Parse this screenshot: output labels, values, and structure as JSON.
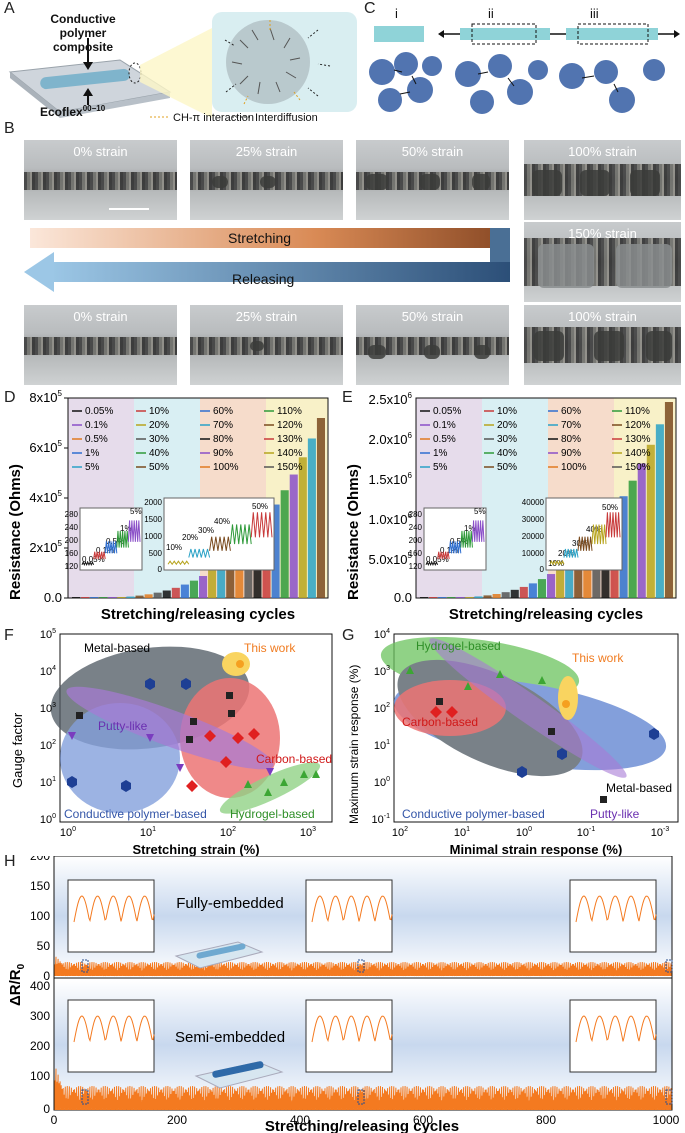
{
  "panels": {
    "A": "A",
    "B": "B",
    "C": "C",
    "D": "D",
    "E": "E",
    "F": "F",
    "G": "G",
    "H": "H"
  },
  "panelA": {
    "label_composite_1": "Conductive",
    "label_composite_2": "polymer composite",
    "label_substrate": "Ecoflex",
    "label_substrate_sup": "00−10",
    "legend_ch": "CH-π interaction",
    "legend_inter": "Interdiffusion"
  },
  "panelC": {
    "i": "i",
    "ii": "ii",
    "iii": "iii"
  },
  "panelB": {
    "top_labels": [
      "0% strain",
      "25% strain",
      "50% strain"
    ],
    "right_labels": [
      "100% strain",
      "150% strain",
      "100% strain"
    ],
    "bottom_labels": [
      "0% strain",
      "25% strain",
      "50% strain"
    ],
    "stretching": "Stretching",
    "releasing": "Releasing"
  },
  "panelD": {
    "ylabel": "Resistance (Ohms)",
    "xlabel": "Stretching/releasing cycles",
    "yticks": [
      "8x10",
      "6x10",
      "4x10",
      "2x10",
      "0.0"
    ],
    "ytick_exp": "5",
    "legend": [
      "0.05%",
      "10%",
      "60%",
      "110%",
      "0.1%",
      "20%",
      "70%",
      "120%",
      "0.5%",
      "30%",
      "80%",
      "130%",
      "1%",
      "40%",
      "90%",
      "140%",
      "5%",
      "50%",
      "100%",
      "150%"
    ],
    "inset1_yticks": [
      "280",
      "240",
      "200",
      "160",
      "120"
    ],
    "inset1_labels": [
      "0.05%",
      "0.1%",
      "0.5%",
      "1%",
      "5%"
    ],
    "inset2_yticks": [
      "2000",
      "1500",
      "1000",
      "500",
      "0"
    ],
    "inset2_labels": [
      "10%",
      "20%",
      "30%",
      "40%",
      "50%"
    ]
  },
  "panelE": {
    "ylabel": "Resistance (Ohms)",
    "xlabel": "Stretching/releasing cycles",
    "yticks": [
      "2.5x10",
      "2.0x10",
      "1.5x10",
      "1.0x10",
      "5.0x10",
      "0.0"
    ],
    "ytick_exps": [
      "6",
      "6",
      "6",
      "6",
      "5"
    ],
    "inset1_yticks": [
      "280",
      "240",
      "200",
      "160",
      "120"
    ],
    "inset1_labels": [
      "0.05%",
      "0.1%",
      "0.5%",
      "1%",
      "5%"
    ],
    "inset2_yticks": [
      "40000",
      "30000",
      "20000",
      "10000",
      "0"
    ],
    "inset2_labels": [
      "10%",
      "20%",
      "30%",
      "40%",
      "50%"
    ]
  },
  "panelF": {
    "ylabel": "Gauge factor",
    "xlabel": "Stretching strain (%)",
    "yticks": [
      "10",
      "10",
      "10",
      "10",
      "10",
      "10"
    ],
    "ytick_exps": [
      "5",
      "4",
      "3",
      "2",
      "1",
      "0"
    ],
    "xticks": [
      "10",
      "10",
      "10",
      "10"
    ],
    "xtick_exps": [
      "0",
      "1",
      "2",
      "3"
    ],
    "labels": {
      "metal": "Metal-based",
      "this": "This work",
      "putty": "Putty-like",
      "carbon": "Carbon-based",
      "conductive": "Conductive polymer-based",
      "hydrogel": "Hydrogel-based"
    }
  },
  "panelG": {
    "ylabel": "Maximum strain response (%)",
    "xlabel": "Minimal strain response (%)",
    "yticks": [
      "10",
      "10",
      "10",
      "10",
      "10",
      "10"
    ],
    "ytick_exps": [
      "4",
      "3",
      "2",
      "1",
      "0",
      "-1"
    ],
    "xticks": [
      "10",
      "10",
      "10",
      "10",
      "10"
    ],
    "xtick_exps": [
      "2",
      "1",
      "0",
      "-1",
      "-3"
    ],
    "labels": {
      "hydrogel": "Hydrogel-based",
      "this": "This work",
      "carbon": "Carbon-based",
      "metal": "Metal-based",
      "conductive": "Conductive polymer-based",
      "putty": "Putty-like"
    }
  },
  "panelH": {
    "ylabel": "ΔR/R",
    "ylabel_sub": "0",
    "xlabel": "Stretching/releasing cycles",
    "top_label": "Fully-embedded",
    "bottom_label": "Semi-embedded",
    "top_yticks": [
      "200",
      "150",
      "100",
      "50",
      "0"
    ],
    "bottom_yticks": [
      "400",
      "300",
      "200",
      "100",
      "0"
    ],
    "xticks": [
      "0",
      "200",
      "400",
      "600",
      "800",
      "1000"
    ]
  },
  "colors": {
    "orange": "#f47a20",
    "blue": "#3e6fb0",
    "steel": "#5b7fb5",
    "purple_bg": "#e6dceb",
    "cyan_bg": "#d9eff3",
    "peach_bg": "#f6dccb",
    "yellow_bg": "#f8f1c8"
  }
}
